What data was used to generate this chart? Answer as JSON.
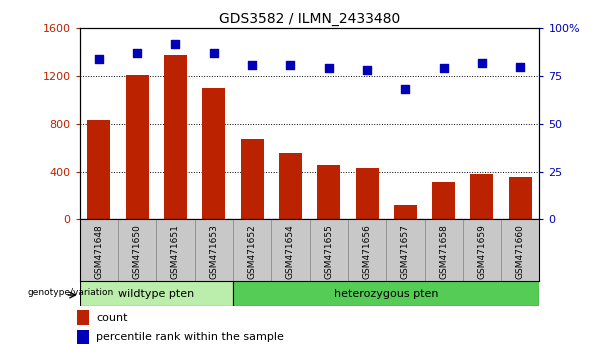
{
  "title": "GDS3582 / ILMN_2433480",
  "categories": [
    "GSM471648",
    "GSM471650",
    "GSM471651",
    "GSM471653",
    "GSM471652",
    "GSM471654",
    "GSM471655",
    "GSM471656",
    "GSM471657",
    "GSM471658",
    "GSM471659",
    "GSM471660"
  ],
  "counts": [
    830,
    1210,
    1380,
    1100,
    670,
    560,
    460,
    430,
    120,
    310,
    380,
    355
  ],
  "percentiles": [
    84,
    87,
    92,
    87,
    81,
    81,
    79,
    78,
    68,
    79,
    82,
    80
  ],
  "bar_color": "#bb2200",
  "dot_color": "#0000bb",
  "ylim_left": [
    0,
    1600
  ],
  "ylim_right": [
    0,
    100
  ],
  "yticks_left": [
    0,
    400,
    800,
    1200,
    1600
  ],
  "yticks_right": [
    0,
    25,
    50,
    75,
    100
  ],
  "ytick_labels_right": [
    "0",
    "25",
    "50",
    "75",
    "100%"
  ],
  "grid_lines": [
    400,
    800,
    1200
  ],
  "n_wildtype": 4,
  "n_hetero": 8,
  "wildtype_label": "wildtype pten",
  "hetero_label": "heterozygous pten",
  "genotype_label": "genotype/variation",
  "legend_count_label": "count",
  "legend_percentile_label": "percentile rank within the sample",
  "bar_width": 0.6,
  "wildtype_bg": "#bbeeaa",
  "hetero_bg": "#55cc55",
  "tick_area_bg": "#c8c8c8",
  "dot_size": 35
}
